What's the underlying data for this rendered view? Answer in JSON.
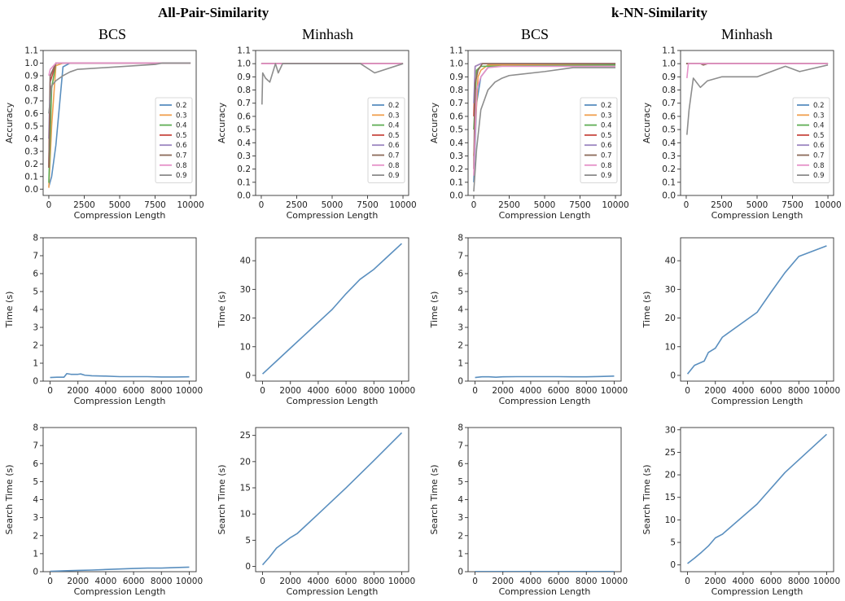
{
  "header": {
    "group_titles": [
      "All-Pair-Similarity",
      "k-NN-Similarity"
    ],
    "column_titles": [
      "BCS",
      "Minhash",
      "BCS",
      "Minhash"
    ]
  },
  "colors": {
    "0.2": "#5a8fbf",
    "0.3": "#f0a050",
    "0.4": "#5fae55",
    "0.5": "#c84a42",
    "0.6": "#9b85c0",
    "0.7": "#8c6a5a",
    "0.8": "#e591c8",
    "0.9": "#8d8d8d"
  },
  "chart_data": [
    {
      "type": "line",
      "group": "All-Pair-Similarity",
      "method": "BCS",
      "xlabel": "Compression Length",
      "ylabel": "Accuracy",
      "xlim": [
        -400,
        10400
      ],
      "ylim": [
        -0.05,
        1.1
      ],
      "xticks": [
        0,
        2500,
        5000,
        7500,
        10000
      ],
      "yticks": [
        0.0,
        0.1,
        0.2,
        0.3,
        0.4,
        0.5,
        0.6,
        0.7,
        0.8,
        0.9,
        1.0,
        1.1
      ],
      "legend": {
        "position": "lower-right",
        "entries": [
          "0.2",
          "0.3",
          "0.4",
          "0.5",
          "0.6",
          "0.7",
          "0.8",
          "0.9"
        ]
      },
      "series": [
        {
          "name": "0.2",
          "x": [
            0,
            200,
            500,
            1000,
            1500,
            10000
          ],
          "y": [
            0.02,
            0.1,
            0.35,
            0.97,
            1.0,
            1.0
          ]
        },
        {
          "name": "0.3",
          "x": [
            0,
            200,
            500,
            1000,
            10000
          ],
          "y": [
            0.01,
            0.5,
            0.98,
            1.0,
            1.0
          ]
        },
        {
          "name": "0.4",
          "x": [
            0,
            200,
            500,
            10000
          ],
          "y": [
            0.05,
            0.8,
            1.0,
            1.0
          ]
        },
        {
          "name": "0.5",
          "x": [
            0,
            100,
            500,
            10000
          ],
          "y": [
            0.17,
            0.85,
            1.0,
            1.0
          ]
        },
        {
          "name": "0.6",
          "x": [
            0,
            100,
            500,
            10000
          ],
          "y": [
            0.4,
            0.9,
            1.0,
            1.0
          ]
        },
        {
          "name": "0.7",
          "x": [
            0,
            100,
            300,
            500,
            10000
          ],
          "y": [
            0.17,
            0.9,
            0.95,
            1.0,
            1.0
          ]
        },
        {
          "name": "0.8",
          "x": [
            0,
            100,
            500,
            10000
          ],
          "y": [
            0.9,
            0.95,
            1.0,
            1.0
          ]
        },
        {
          "name": "0.9",
          "x": [
            0,
            200,
            500,
            1000,
            1500,
            2000,
            7500,
            8000,
            10000
          ],
          "y": [
            0.6,
            0.82,
            0.86,
            0.9,
            0.93,
            0.95,
            0.99,
            1.0,
            1.0
          ]
        }
      ]
    },
    {
      "type": "line",
      "group": "All-Pair-Similarity",
      "method": "Minhash",
      "xlabel": "Compression Length",
      "ylabel": "Accuracy",
      "xlim": [
        -400,
        10400
      ],
      "ylim": [
        0.0,
        1.1
      ],
      "xticks": [
        0,
        2500,
        5000,
        7500,
        10000
      ],
      "yticks": [
        0.0,
        0.1,
        0.2,
        0.3,
        0.4,
        0.5,
        0.6,
        0.7,
        0.8,
        0.9,
        1.0,
        1.1
      ],
      "legend": {
        "position": "lower-right",
        "entries": [
          "0.2",
          "0.3",
          "0.4",
          "0.5",
          "0.6",
          "0.7",
          "0.8",
          "0.9"
        ]
      },
      "series": [
        {
          "name": "0.2",
          "x": [
            0,
            10000
          ],
          "y": [
            1.0,
            1.0
          ]
        },
        {
          "name": "0.3",
          "x": [
            0,
            10000
          ],
          "y": [
            1.0,
            1.0
          ]
        },
        {
          "name": "0.4",
          "x": [
            0,
            10000
          ],
          "y": [
            1.0,
            1.0
          ]
        },
        {
          "name": "0.5",
          "x": [
            0,
            10000
          ],
          "y": [
            1.0,
            1.0
          ]
        },
        {
          "name": "0.6",
          "x": [
            0,
            10000
          ],
          "y": [
            1.0,
            1.0
          ]
        },
        {
          "name": "0.7",
          "x": [
            0,
            10000
          ],
          "y": [
            1.0,
            1.0
          ]
        },
        {
          "name": "0.8",
          "x": [
            0,
            10000
          ],
          "y": [
            1.0,
            1.0
          ]
        },
        {
          "name": "0.9",
          "x": [
            50,
            100,
            300,
            600,
            1000,
            1200,
            1500,
            7000,
            8000,
            10000
          ],
          "y": [
            0.69,
            0.93,
            0.89,
            0.86,
            1.0,
            0.93,
            1.0,
            1.0,
            0.93,
            1.0
          ]
        }
      ]
    },
    {
      "type": "line",
      "group": "k-NN-Similarity",
      "method": "BCS",
      "xlabel": "Compression Length",
      "ylabel": "Accuracy",
      "xlim": [
        -400,
        10400
      ],
      "ylim": [
        0.0,
        1.1
      ],
      "xticks": [
        0,
        2500,
        5000,
        7500,
        10000
      ],
      "yticks": [
        0.0,
        0.1,
        0.2,
        0.3,
        0.4,
        0.5,
        0.6,
        0.7,
        0.8,
        0.9,
        1.0,
        1.1
      ],
      "legend": {
        "position": "lower-right",
        "entries": [
          "0.2",
          "0.3",
          "0.4",
          "0.5",
          "0.6",
          "0.7",
          "0.8",
          "0.9"
        ]
      },
      "series": [
        {
          "name": "0.2",
          "x": [
            0,
            200,
            500,
            1000,
            1500,
            10000
          ],
          "y": [
            0.1,
            0.7,
            0.9,
            0.97,
            0.99,
            0.99
          ]
        },
        {
          "name": "0.3",
          "x": [
            0,
            300,
            500,
            1000,
            10000
          ],
          "y": [
            0.3,
            0.9,
            0.95,
            0.99,
            0.99
          ]
        },
        {
          "name": "0.4",
          "x": [
            0,
            200,
            500,
            10000
          ],
          "y": [
            0.5,
            0.95,
            0.98,
            0.99
          ]
        },
        {
          "name": "0.5",
          "x": [
            0,
            100,
            500,
            10000
          ],
          "y": [
            0.6,
            0.98,
            1.0,
            1.0
          ]
        },
        {
          "name": "0.6",
          "x": [
            0,
            100,
            500,
            10000
          ],
          "y": [
            0.7,
            0.98,
            1.0,
            1.0
          ]
        },
        {
          "name": "0.7",
          "x": [
            0,
            100,
            300,
            600,
            10000
          ],
          "y": [
            0.2,
            0.85,
            0.95,
            1.0,
            1.0
          ]
        },
        {
          "name": "0.8",
          "x": [
            0,
            200,
            500,
            1000,
            2000,
            10000
          ],
          "y": [
            0.15,
            0.8,
            0.9,
            0.97,
            0.98,
            0.98
          ]
        },
        {
          "name": "0.9",
          "x": [
            0,
            200,
            500,
            1000,
            1500,
            2000,
            2500,
            5000,
            7000,
            10000
          ],
          "y": [
            0.03,
            0.35,
            0.65,
            0.8,
            0.86,
            0.89,
            0.91,
            0.94,
            0.97,
            0.97
          ]
        }
      ]
    },
    {
      "type": "line",
      "group": "k-NN-Similarity",
      "method": "Minhash",
      "xlabel": "Compression Length",
      "ylabel": "Accuracy",
      "xlim": [
        -400,
        10400
      ],
      "ylim": [
        0.0,
        1.1
      ],
      "xticks": [
        0,
        2500,
        5000,
        7500,
        10000
      ],
      "yticks": [
        0.0,
        0.1,
        0.2,
        0.3,
        0.4,
        0.5,
        0.6,
        0.7,
        0.8,
        0.9,
        1.0,
        1.1
      ],
      "legend": {
        "position": "lower-right",
        "entries": [
          "0.2",
          "0.3",
          "0.4",
          "0.5",
          "0.6",
          "0.7",
          "0.8",
          "0.9"
        ]
      },
      "series": [
        {
          "name": "0.2",
          "x": [
            0,
            10000
          ],
          "y": [
            1.0,
            1.0
          ]
        },
        {
          "name": "0.3",
          "x": [
            0,
            10000
          ],
          "y": [
            1.0,
            1.0
          ]
        },
        {
          "name": "0.4",
          "x": [
            0,
            10000
          ],
          "y": [
            1.0,
            1.0
          ]
        },
        {
          "name": "0.5",
          "x": [
            0,
            10000
          ],
          "y": [
            1.0,
            1.0
          ]
        },
        {
          "name": "0.6",
          "x": [
            0,
            10000
          ],
          "y": [
            1.0,
            1.0
          ]
        },
        {
          "name": "0.7",
          "x": [
            0,
            1000,
            1200,
            1500,
            10000
          ],
          "y": [
            1.0,
            1.0,
            0.99,
            1.0,
            1.0
          ]
        },
        {
          "name": "0.8",
          "x": [
            50,
            150,
            10000
          ],
          "y": [
            0.89,
            1.0,
            1.0
          ]
        },
        {
          "name": "0.9",
          "x": [
            50,
            200,
            500,
            1000,
            1500,
            2500,
            5000,
            7000,
            8000,
            10000
          ],
          "y": [
            0.46,
            0.65,
            0.89,
            0.82,
            0.87,
            0.9,
            0.9,
            0.98,
            0.94,
            0.99
          ]
        }
      ]
    },
    {
      "type": "line",
      "group": "All-Pair-Similarity",
      "method": "BCS",
      "xlabel": "Compression Length",
      "ylabel": "Time (s)",
      "xlim": [
        -500,
        10500
      ],
      "ylim": [
        0,
        8
      ],
      "xticks": [
        0,
        2000,
        4000,
        6000,
        8000,
        10000
      ],
      "yticks": [
        0,
        1,
        2,
        3,
        4,
        5,
        6,
        7,
        8
      ],
      "series": [
        {
          "name": "",
          "x": [
            0,
            500,
            1000,
            1200,
            1500,
            2000,
            2200,
            2500,
            3000,
            4000,
            5000,
            6000,
            7000,
            8000,
            9000,
            10000
          ],
          "y": [
            0.2,
            0.22,
            0.22,
            0.42,
            0.38,
            0.38,
            0.4,
            0.33,
            0.3,
            0.28,
            0.25,
            0.25,
            0.25,
            0.23,
            0.23,
            0.24
          ]
        }
      ]
    },
    {
      "type": "line",
      "group": "All-Pair-Similarity",
      "method": "Minhash",
      "xlabel": "Compression Length",
      "ylabel": "Time (s)",
      "xlim": [
        -500,
        10500
      ],
      "ylim": [
        -2,
        48
      ],
      "xticks": [
        0,
        2000,
        4000,
        6000,
        8000,
        10000
      ],
      "yticks": [
        0,
        10,
        20,
        30,
        40
      ],
      "series": [
        {
          "name": "",
          "x": [
            0,
            1000,
            2000,
            3000,
            4000,
            5000,
            6000,
            7000,
            8000,
            9000,
            10000
          ],
          "y": [
            0.5,
            5,
            9.5,
            14,
            18.5,
            23,
            28.5,
            33.5,
            37,
            41.5,
            46
          ]
        }
      ]
    },
    {
      "type": "line",
      "group": "k-NN-Similarity",
      "method": "BCS",
      "xlabel": "Compression Length",
      "ylabel": "Time (s)",
      "xlim": [
        -500,
        10500
      ],
      "ylim": [
        0,
        8
      ],
      "xticks": [
        0,
        2000,
        4000,
        6000,
        8000,
        10000
      ],
      "yticks": [
        0,
        1,
        2,
        3,
        4,
        5,
        6,
        7,
        8
      ],
      "series": [
        {
          "name": "",
          "x": [
            0,
            500,
            1000,
            1500,
            2000,
            3000,
            4000,
            5000,
            6000,
            7000,
            8000,
            9000,
            10000
          ],
          "y": [
            0.2,
            0.24,
            0.24,
            0.22,
            0.24,
            0.25,
            0.25,
            0.25,
            0.25,
            0.24,
            0.24,
            0.26,
            0.28
          ]
        }
      ]
    },
    {
      "type": "line",
      "group": "k-NN-Similarity",
      "method": "Minhash",
      "xlabel": "Compression Length",
      "ylabel": "Time (s)",
      "xlim": [
        -500,
        10500
      ],
      "ylim": [
        -2,
        48
      ],
      "xticks": [
        0,
        2000,
        4000,
        6000,
        8000,
        10000
      ],
      "yticks": [
        0,
        10,
        20,
        30,
        40
      ],
      "series": [
        {
          "name": "",
          "x": [
            0,
            500,
            1200,
            1500,
            2000,
            2500,
            5000,
            6000,
            7000,
            8000,
            10000
          ],
          "y": [
            0.5,
            3.5,
            5,
            8,
            9.5,
            13.3,
            22,
            29,
            35.8,
            41.5,
            45.2
          ]
        }
      ]
    },
    {
      "type": "line",
      "group": "All-Pair-Similarity",
      "method": "BCS",
      "xlabel": "Compression Length",
      "ylabel": "Search Time (s)",
      "xlim": [
        -500,
        10500
      ],
      "ylim": [
        0,
        8
      ],
      "xticks": [
        0,
        2000,
        4000,
        6000,
        8000,
        10000
      ],
      "yticks": [
        0,
        1,
        2,
        3,
        4,
        5,
        6,
        7,
        8
      ],
      "series": [
        {
          "name": "",
          "x": [
            0,
            1000,
            2000,
            3000,
            4000,
            5000,
            6000,
            7000,
            8000,
            9000,
            10000
          ],
          "y": [
            0.02,
            0.05,
            0.07,
            0.09,
            0.12,
            0.15,
            0.18,
            0.2,
            0.2,
            0.23,
            0.25
          ]
        }
      ]
    },
    {
      "type": "line",
      "group": "All-Pair-Similarity",
      "method": "Minhash",
      "xlabel": "Compression Length",
      "ylabel": "Search Time (s)",
      "xlim": [
        -500,
        10500
      ],
      "ylim": [
        -1,
        26.5
      ],
      "xticks": [
        0,
        2000,
        4000,
        6000,
        8000,
        10000
      ],
      "yticks": [
        0,
        5,
        10,
        15,
        20,
        25
      ],
      "series": [
        {
          "name": "",
          "x": [
            0,
            500,
            1000,
            1500,
            2000,
            2500,
            4000,
            6000,
            8000,
            10000
          ],
          "y": [
            0.3,
            1.8,
            3.5,
            4.5,
            5.5,
            6.3,
            10,
            15,
            20.2,
            25.5
          ]
        }
      ]
    },
    {
      "type": "line",
      "group": "k-NN-Similarity",
      "method": "BCS",
      "xlabel": "Compression Length",
      "ylabel": "Search Time (s)",
      "xlim": [
        -500,
        10500
      ],
      "ylim": [
        0,
        8
      ],
      "xticks": [
        0,
        2000,
        4000,
        6000,
        8000,
        10000
      ],
      "yticks": [
        0,
        1,
        2,
        3,
        4,
        5,
        6,
        7,
        8
      ],
      "series": [
        {
          "name": "",
          "x": [
            0,
            2000,
            4000,
            6000,
            8000,
            10000
          ],
          "y": [
            0.01,
            0.01,
            0.01,
            0.01,
            0.01,
            0.01
          ]
        }
      ]
    },
    {
      "type": "line",
      "group": "k-NN-Similarity",
      "method": "Minhash",
      "xlabel": "Compression Length",
      "ylabel": "Search Time (s)",
      "xlim": [
        -500,
        10500
      ],
      "ylim": [
        -1.5,
        30.5
      ],
      "xticks": [
        0,
        2000,
        4000,
        6000,
        8000,
        10000
      ],
      "yticks": [
        0,
        5,
        10,
        15,
        20,
        25,
        30
      ],
      "series": [
        {
          "name": "",
          "x": [
            0,
            500,
            1000,
            1500,
            2000,
            2500,
            5000,
            7000,
            10000
          ],
          "y": [
            0.3,
            1.5,
            2.8,
            4.2,
            6,
            6.8,
            13.5,
            20.5,
            29
          ]
        }
      ]
    }
  ]
}
